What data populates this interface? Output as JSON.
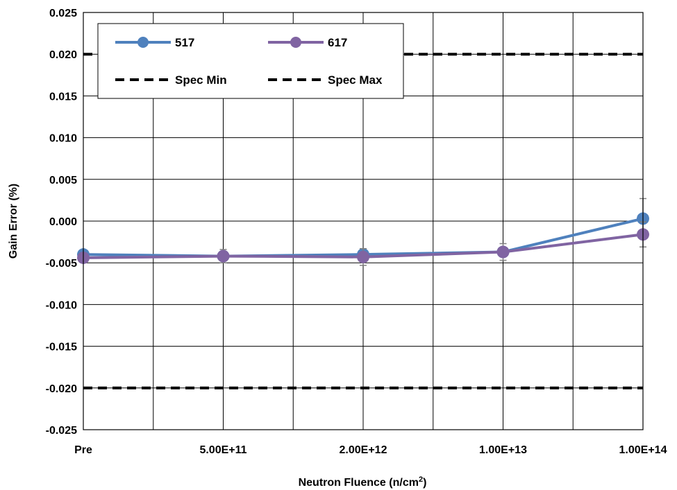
{
  "chart_data": {
    "type": "line",
    "categories": [
      "Pre",
      "5.00E+11",
      "2.00E+12",
      "1.00E+13",
      "1.00E+14"
    ],
    "xlabel": "Neutron Fluence (n/cm",
    "xlabel_sup": "2",
    "xlabel_end": ")",
    "ylabel": "Gain Error (%)",
    "ylim": [
      -0.025,
      0.025
    ],
    "yticks": [
      "0.025",
      "0.020",
      "0.015",
      "0.010",
      "0.005",
      "0.000",
      "-0.005",
      "-0.010",
      "-0.015",
      "-0.020",
      "-0.025"
    ],
    "grid": true,
    "legend_position": "top-left",
    "series": [
      {
        "name": "517",
        "color": "#4f81bd",
        "marker": "circle",
        "values": [
          -0.004,
          -0.0042,
          -0.004,
          -0.0037,
          0.0003
        ],
        "error": [
          0.0004,
          0.0005,
          0.0005,
          0.0004,
          0.0024
        ]
      },
      {
        "name": "617",
        "color": "#8064a2",
        "marker": "circle",
        "values": [
          -0.0044,
          -0.0042,
          -0.0043,
          -0.0037,
          -0.0016
        ],
        "error": [
          0.0003,
          0.0008,
          0.001,
          0.001,
          0.0015
        ]
      },
      {
        "name": "Spec Min",
        "color": "#000000",
        "dash": true,
        "values": [
          0.02,
          0.02,
          0.02,
          0.02,
          0.02
        ]
      },
      {
        "name": "Spec Max",
        "color": "#000000",
        "dash": true,
        "values": [
          -0.02,
          -0.02,
          -0.02,
          -0.02,
          -0.02
        ]
      }
    ]
  }
}
